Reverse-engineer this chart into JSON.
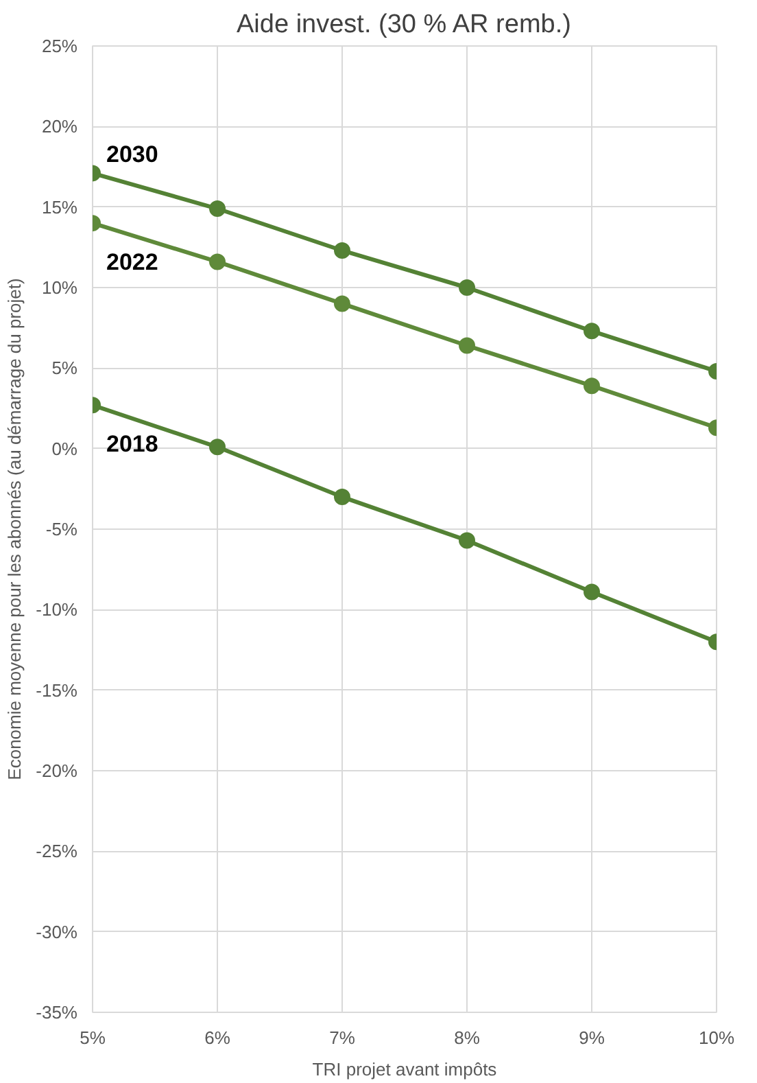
{
  "chart_data": {
    "type": "line",
    "title": "Aide invest. (30 % AR remb.)",
    "xlabel": "TRI projet avant impôts",
    "ylabel": "Economie moyenne pour les abonnés (au démarrage du projet)",
    "x": [
      5,
      6,
      7,
      8,
      9,
      10
    ],
    "series": [
      {
        "name": "2030",
        "color": "#548235",
        "values": [
          17.1,
          14.9,
          12.3,
          10.0,
          7.3,
          4.8
        ]
      },
      {
        "name": "2022",
        "color": "#5f8a3a",
        "values": [
          14.0,
          11.6,
          9.0,
          6.4,
          3.9,
          1.3
        ]
      },
      {
        "name": "2018",
        "color": "#548235",
        "values": [
          2.7,
          0.1,
          -3.0,
          -5.7,
          -8.9,
          -12.0
        ]
      }
    ],
    "xlim": [
      5,
      10
    ],
    "xticks": [
      {
        "value": 5,
        "label": "5%"
      },
      {
        "value": 6,
        "label": "6%"
      },
      {
        "value": 7,
        "label": "7%"
      },
      {
        "value": 8,
        "label": "8%"
      },
      {
        "value": 9,
        "label": "9%"
      },
      {
        "value": 10,
        "label": "10%"
      }
    ],
    "ylim": [
      -35,
      25
    ],
    "yticks": [
      {
        "value": -35,
        "label": "-35%"
      },
      {
        "value": -30,
        "label": "-30%"
      },
      {
        "value": -25,
        "label": "-25%"
      },
      {
        "value": -20,
        "label": "-20%"
      },
      {
        "value": -15,
        "label": "-15%"
      },
      {
        "value": -10,
        "label": "-10%"
      },
      {
        "value": -5,
        "label": "-5%"
      },
      {
        "value": 0,
        "label": "0%"
      },
      {
        "value": 5,
        "label": "5%"
      },
      {
        "value": 10,
        "label": "10%"
      },
      {
        "value": 15,
        "label": "15%"
      },
      {
        "value": 20,
        "label": "20%"
      },
      {
        "value": 25,
        "label": "25%"
      }
    ],
    "grid": true,
    "marker": "circle",
    "line_style": "solid"
  }
}
